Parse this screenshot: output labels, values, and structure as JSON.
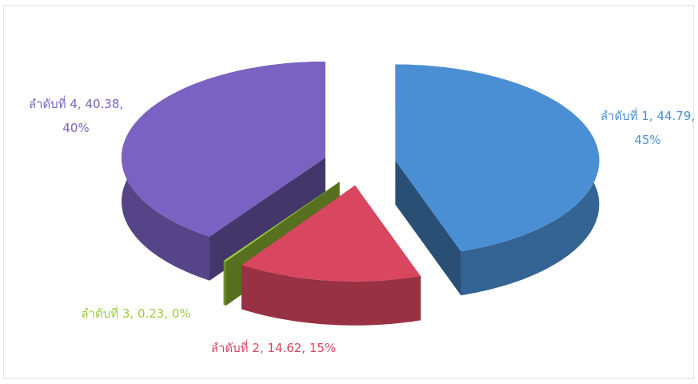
{
  "chart_data": {
    "type": "pie3d",
    "values": [
      44.79,
      14.62,
      0.23,
      40.38
    ],
    "value_labels": [
      "ลำดับที่ 1, 44.79, 45%",
      "ลำดับที่ 2, 14.62, 15%",
      "ลำดับที่ 3, 0.23, 0%",
      "ลำดับที่ 4, 40.38, 40%"
    ],
    "colors": [
      "#4a8fd4",
      "#d8465f",
      "#9ccb3b",
      "#7a62c2"
    ]
  }
}
